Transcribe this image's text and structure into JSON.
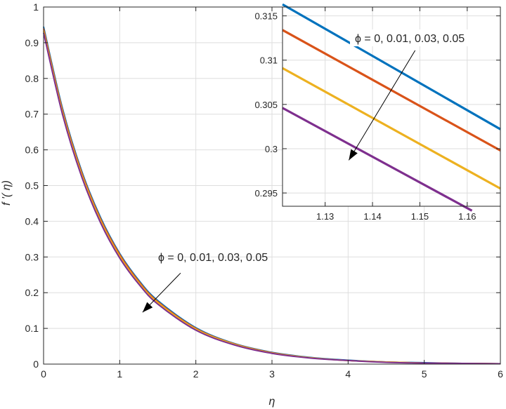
{
  "chart_data": [
    {
      "type": "line",
      "xlabel": "η",
      "ylabel": "f '( η)",
      "xlim": [
        0,
        6
      ],
      "ylim": [
        0,
        1
      ],
      "x_ticks": [
        "0",
        "1",
        "2",
        "3",
        "4",
        "5",
        "6"
      ],
      "y_ticks": [
        "0",
        "0.1",
        "0.2",
        "0.3",
        "0.4",
        "0.5",
        "0.6",
        "0.7",
        "0.8",
        "0.9",
        "1"
      ],
      "grid": true,
      "series": [
        {
          "color": "#0072BD",
          "x": [
            0,
            0.25,
            0.5,
            0.75,
            1,
            1.25,
            1.5,
            2,
            2.5,
            3,
            3.5,
            4,
            4.5,
            5,
            5.5,
            6
          ],
          "y": [
            0.945,
            0.715,
            0.541,
            0.41,
            0.31,
            0.235,
            0.178,
            0.102,
            0.058,
            0.033,
            0.019,
            0.011,
            0.006,
            0.004,
            0.002,
            0.001
          ]
        },
        {
          "color": "#D95319",
          "x": [
            0,
            0.25,
            0.5,
            0.75,
            1,
            1.25,
            1.5,
            2,
            2.5,
            3,
            3.5,
            4,
            4.5,
            5,
            5.5,
            6
          ],
          "y": [
            0.94,
            0.71,
            0.537,
            0.406,
            0.307,
            0.232,
            0.175,
            0.1,
            0.057,
            0.032,
            0.018,
            0.01,
            0.006,
            0.003,
            0.002,
            0.001
          ]
        },
        {
          "color": "#EDB120",
          "x": [
            0,
            0.25,
            0.5,
            0.75,
            1,
            1.25,
            1.5,
            2,
            2.5,
            3,
            3.5,
            4,
            4.5,
            5,
            5.5,
            6
          ],
          "y": [
            0.934,
            0.704,
            0.531,
            0.401,
            0.302,
            0.228,
            0.172,
            0.098,
            0.056,
            0.031,
            0.018,
            0.01,
            0.006,
            0.003,
            0.002,
            0.001
          ]
        },
        {
          "color": "#7E2F8E",
          "x": [
            0,
            0.25,
            0.5,
            0.75,
            1,
            1.25,
            1.5,
            2,
            2.5,
            3,
            3.5,
            4,
            4.5,
            5,
            5.5,
            6
          ],
          "y": [
            0.928,
            0.698,
            0.525,
            0.395,
            0.297,
            0.224,
            0.168,
            0.095,
            0.054,
            0.03,
            0.017,
            0.01,
            0.005,
            0.003,
            0.002,
            0.001
          ]
        }
      ],
      "annotation": {
        "text": "ϕ = 0, 0.01, 0.03, 0.05",
        "arrow_from": [
          1.8,
          0.255
        ],
        "arrow_to": [
          1.3,
          0.145
        ]
      }
    },
    {
      "type": "line",
      "inset": true,
      "xlim": [
        1.121,
        1.167
      ],
      "ylim": [
        0.2935,
        0.316
      ],
      "x_ticks": [
        "1.13",
        "1.14",
        "1.15",
        "1.16"
      ],
      "y_ticks": [
        "0.295",
        "0.3",
        "0.305",
        "0.31",
        "0.315"
      ],
      "grid": true,
      "series": [
        {
          "color": "#0072BD",
          "x": [
            1.121,
            1.167
          ],
          "y": [
            0.3163,
            0.3022
          ]
        },
        {
          "color": "#D95319",
          "x": [
            1.121,
            1.167
          ],
          "y": [
            0.3134,
            0.2998
          ]
        },
        {
          "color": "#EDB120",
          "x": [
            1.121,
            1.167
          ],
          "y": [
            0.3091,
            0.2955
          ]
        },
        {
          "color": "#7E2F8E",
          "x": [
            1.121,
            1.161
          ],
          "y": [
            0.3046,
            0.293
          ]
        }
      ],
      "annotation": {
        "text": "ϕ = 0, 0.01, 0.03, 0.05",
        "arrow_from": [
          1.149,
          0.3111
        ],
        "arrow_to": [
          1.135,
          0.2987
        ]
      }
    }
  ]
}
